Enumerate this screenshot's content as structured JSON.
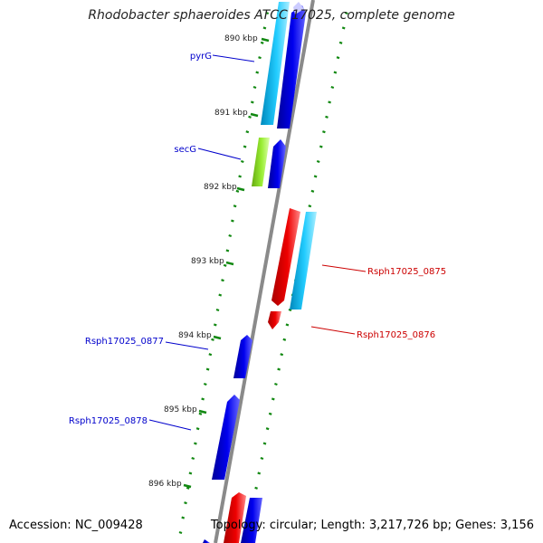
{
  "title": "Rhodobacter sphaeroides ATCC 17025, complete genome",
  "accession_text": "Accession: NC_009428",
  "summary_text": "Topology: circular; Length: 3,217,726 bp; Genes: 3,156",
  "ticks": [
    "890 kbp",
    "891 kbp",
    "892 kbp",
    "893 kbp",
    "894 kbp",
    "895 kbp",
    "896 kbp"
  ],
  "gene_labels": [
    {
      "text": "pyrG",
      "color": "#0000cc"
    },
    {
      "text": "secG",
      "color": "#0000cc"
    },
    {
      "text": "Rsph17025_0875",
      "color": "#cc0000"
    },
    {
      "text": "Rsph17025_0876",
      "color": "#cc0000"
    },
    {
      "text": "Rsph17025_0877",
      "color": "#0000cc"
    },
    {
      "text": "Rsph17025_0878",
      "color": "#0000cc"
    }
  ],
  "colors": {
    "forward_cds": "#0000ee",
    "reverse_cds": "#ee0000",
    "forward_gene": "#22ccff",
    "trna_like": "#99ee33",
    "backbone": "#888888",
    "ticks": "#118811"
  }
}
